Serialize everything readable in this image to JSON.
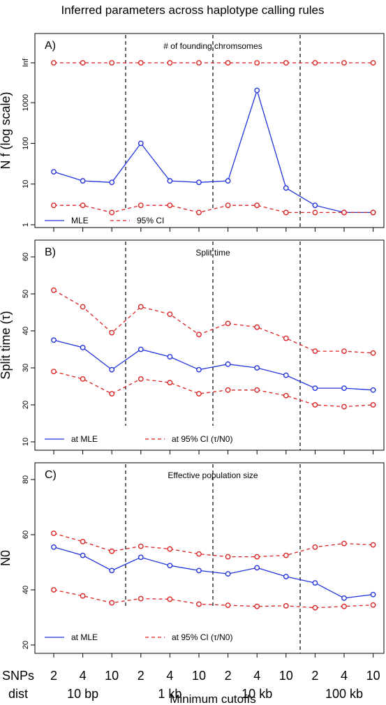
{
  "title": "Inferred parameters across haplotype calling rules",
  "x_row_labels": {
    "snps": "SNPs",
    "dist": "dist"
  },
  "snps_ticks": [
    "2",
    "4",
    "10",
    "2",
    "4",
    "10",
    "2",
    "4",
    "10",
    "2",
    "4",
    "10"
  ],
  "dist_groups": [
    "10 bp",
    "1 kb",
    "10 kb",
    "100 kb"
  ],
  "xlabel": "Minimum cutoffs",
  "colors": {
    "mle": "#2233dd",
    "ci": "#dd2222"
  },
  "chart_data": [
    {
      "type": "line",
      "panel": "A)",
      "subtitle": "# of founding chromsomes",
      "ylabel": "N f (log scale)",
      "yscale": "log",
      "yticks": [
        "1",
        "10",
        "100",
        "1000",
        "Inf"
      ],
      "categories": [
        "2",
        "4",
        "10",
        "2",
        "4",
        "10",
        "2",
        "4",
        "10",
        "2",
        "4",
        "10"
      ],
      "series": [
        {
          "name": "MLE",
          "values": [
            20,
            12,
            11,
            100,
            12,
            11,
            12,
            2000,
            8,
            3,
            2,
            2
          ]
        },
        {
          "name": "95% CI",
          "values": [
            3,
            3,
            2,
            3,
            3,
            2,
            3,
            3,
            2,
            2,
            2,
            2
          ]
        },
        {
          "name": "95% CI upper",
          "values": [
            "Inf",
            "Inf",
            "Inf",
            "Inf",
            "Inf",
            "Inf",
            "Inf",
            "Inf",
            "Inf",
            "Inf",
            "Inf",
            "Inf"
          ]
        }
      ],
      "legend": [
        "MLE",
        "95% CI"
      ]
    },
    {
      "type": "line",
      "panel": "B)",
      "subtitle": "Split time",
      "ylabel": "Split time (τ)",
      "ylim": [
        10,
        60
      ],
      "yticks": [
        "10",
        "20",
        "30",
        "40",
        "50",
        "60"
      ],
      "categories": [
        "2",
        "4",
        "10",
        "2",
        "4",
        "10",
        "2",
        "4",
        "10",
        "2",
        "4",
        "10"
      ],
      "series": [
        {
          "name": "at MLE",
          "values": [
            37.5,
            35.5,
            29.5,
            35,
            33,
            29.5,
            31,
            30,
            28,
            24.5,
            24.5,
            24
          ]
        },
        {
          "name": "at 95% CI (τ/N0)",
          "values": [
            51,
            46.5,
            39.5,
            46.5,
            44.5,
            39,
            42,
            41,
            38,
            34.5,
            34.5,
            34
          ]
        },
        {
          "name": "at 95% CI lower",
          "values": [
            29,
            27,
            23,
            27,
            26,
            23,
            24,
            24,
            22.5,
            20,
            19.5,
            20
          ]
        }
      ],
      "legend": [
        "at MLE",
        "at 95% CI (τ/N0)"
      ]
    },
    {
      "type": "line",
      "panel": "C)",
      "subtitle": "Effective population size",
      "ylabel": "N0",
      "ylim": [
        20,
        80
      ],
      "yticks": [
        "20",
        "40",
        "60",
        "80"
      ],
      "categories": [
        "2",
        "4",
        "10",
        "2",
        "4",
        "10",
        "2",
        "4",
        "10",
        "2",
        "4",
        "10"
      ],
      "series": [
        {
          "name": "at MLE",
          "values": [
            55.5,
            52.5,
            47,
            51.8,
            48.8,
            47,
            45.8,
            48,
            44.8,
            42.5,
            37,
            38.3
          ]
        },
        {
          "name": "at 95% CI (τ/N0)",
          "values": [
            60.5,
            57.5,
            54,
            55.8,
            54.8,
            53,
            52,
            52,
            52.5,
            55.5,
            56.8,
            56.3
          ]
        },
        {
          "name": "at 95% CI lower",
          "values": [
            40,
            37.8,
            35.3,
            36.8,
            36.6,
            34.8,
            34.4,
            34,
            34.2,
            33.5,
            34,
            34.5
          ]
        }
      ],
      "legend": [
        "at MLE",
        "at 95% CI (τ/N0)"
      ]
    }
  ]
}
